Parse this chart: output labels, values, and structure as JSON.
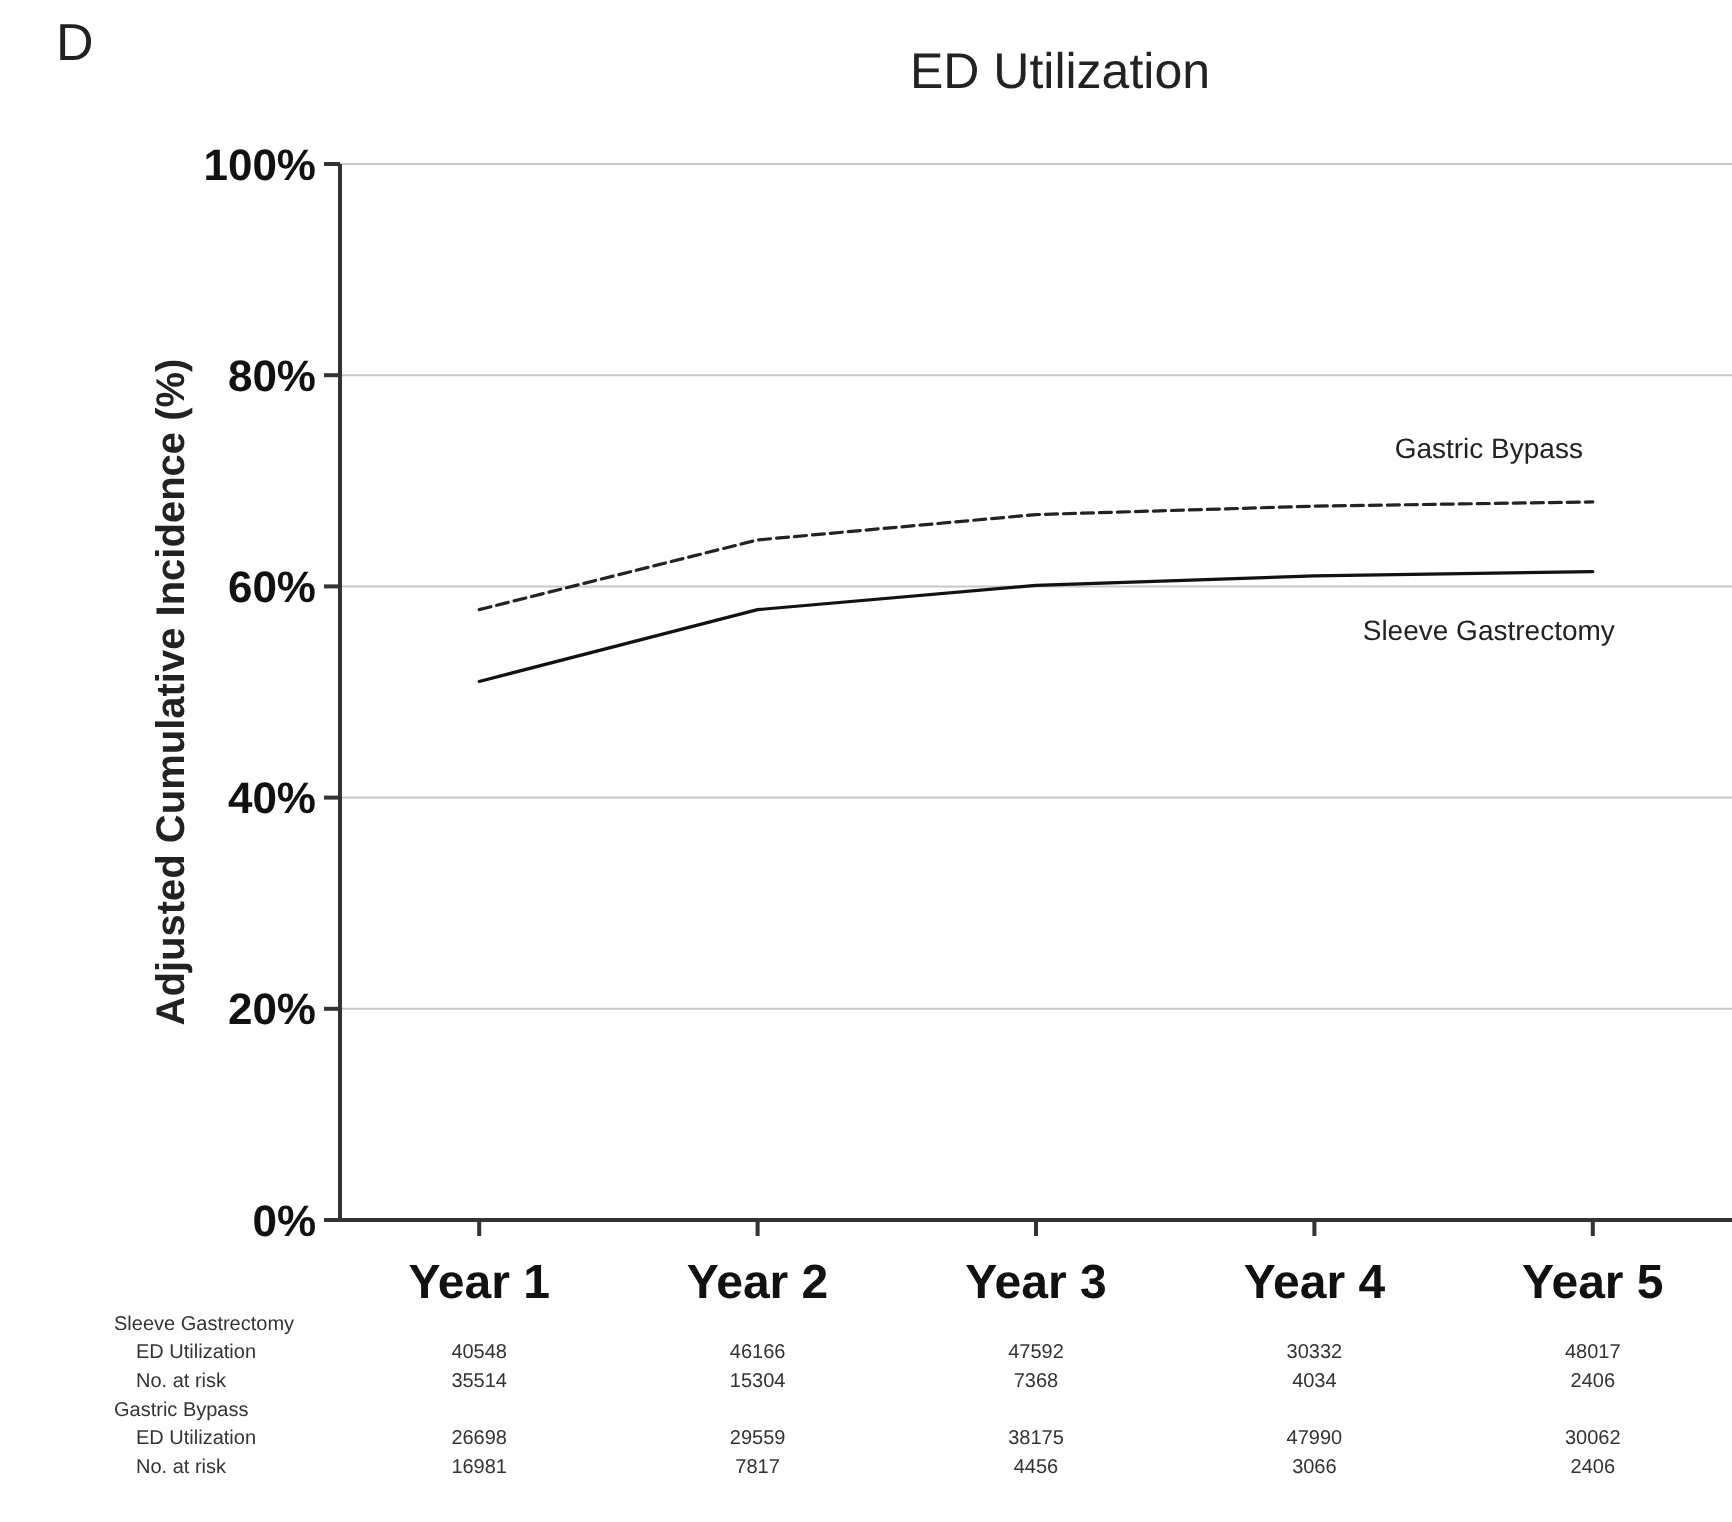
{
  "chart_data": {
    "type": "line",
    "title": "ED Utilization",
    "ylabel": "Adjusted Cumulative Incidence (%)",
    "categories": [
      "Year 1",
      "Year 2",
      "Year 3",
      "Year 4",
      "Year 5"
    ],
    "series": [
      {
        "name": "Gastric Bypass",
        "color": "#222222",
        "line_style": "dashed",
        "values": [
          57.8,
          64.4,
          66.8,
          67.6,
          68
        ]
      },
      {
        "name": "Sleeve Gastrectomy",
        "color": "#111111",
        "line_style": "solid",
        "values": [
          51,
          57.8,
          60.1,
          61,
          61.4
        ]
      }
    ],
    "ylim": [
      0,
      100
    ],
    "yticks": [
      {
        "value": 0,
        "label": "0%"
      },
      {
        "value": 20,
        "label": "20%"
      },
      {
        "value": 40,
        "label": "40%"
      },
      {
        "value": 60,
        "label": "60%"
      },
      {
        "value": 80,
        "label": "80%"
      },
      {
        "value": 100,
        "label": "100%"
      }
    ],
    "grid": "y",
    "legend": false,
    "marker": "none",
    "annotations": [
      "D",
      "Sleeve Gastrectomy",
      "ED Utilization",
      "40548",
      "46166",
      "47592",
      "30332",
      "48017",
      "No. at risk",
      "35514",
      "15304",
      "7368",
      "4034",
      "2406",
      "Gastric Bypass",
      "ED Utilization",
      "26698",
      "29559",
      "38175",
      "47990",
      "30062",
      "No. at risk",
      "16981",
      "7817",
      "4456",
      "3066",
      "2406"
    ]
  }
}
